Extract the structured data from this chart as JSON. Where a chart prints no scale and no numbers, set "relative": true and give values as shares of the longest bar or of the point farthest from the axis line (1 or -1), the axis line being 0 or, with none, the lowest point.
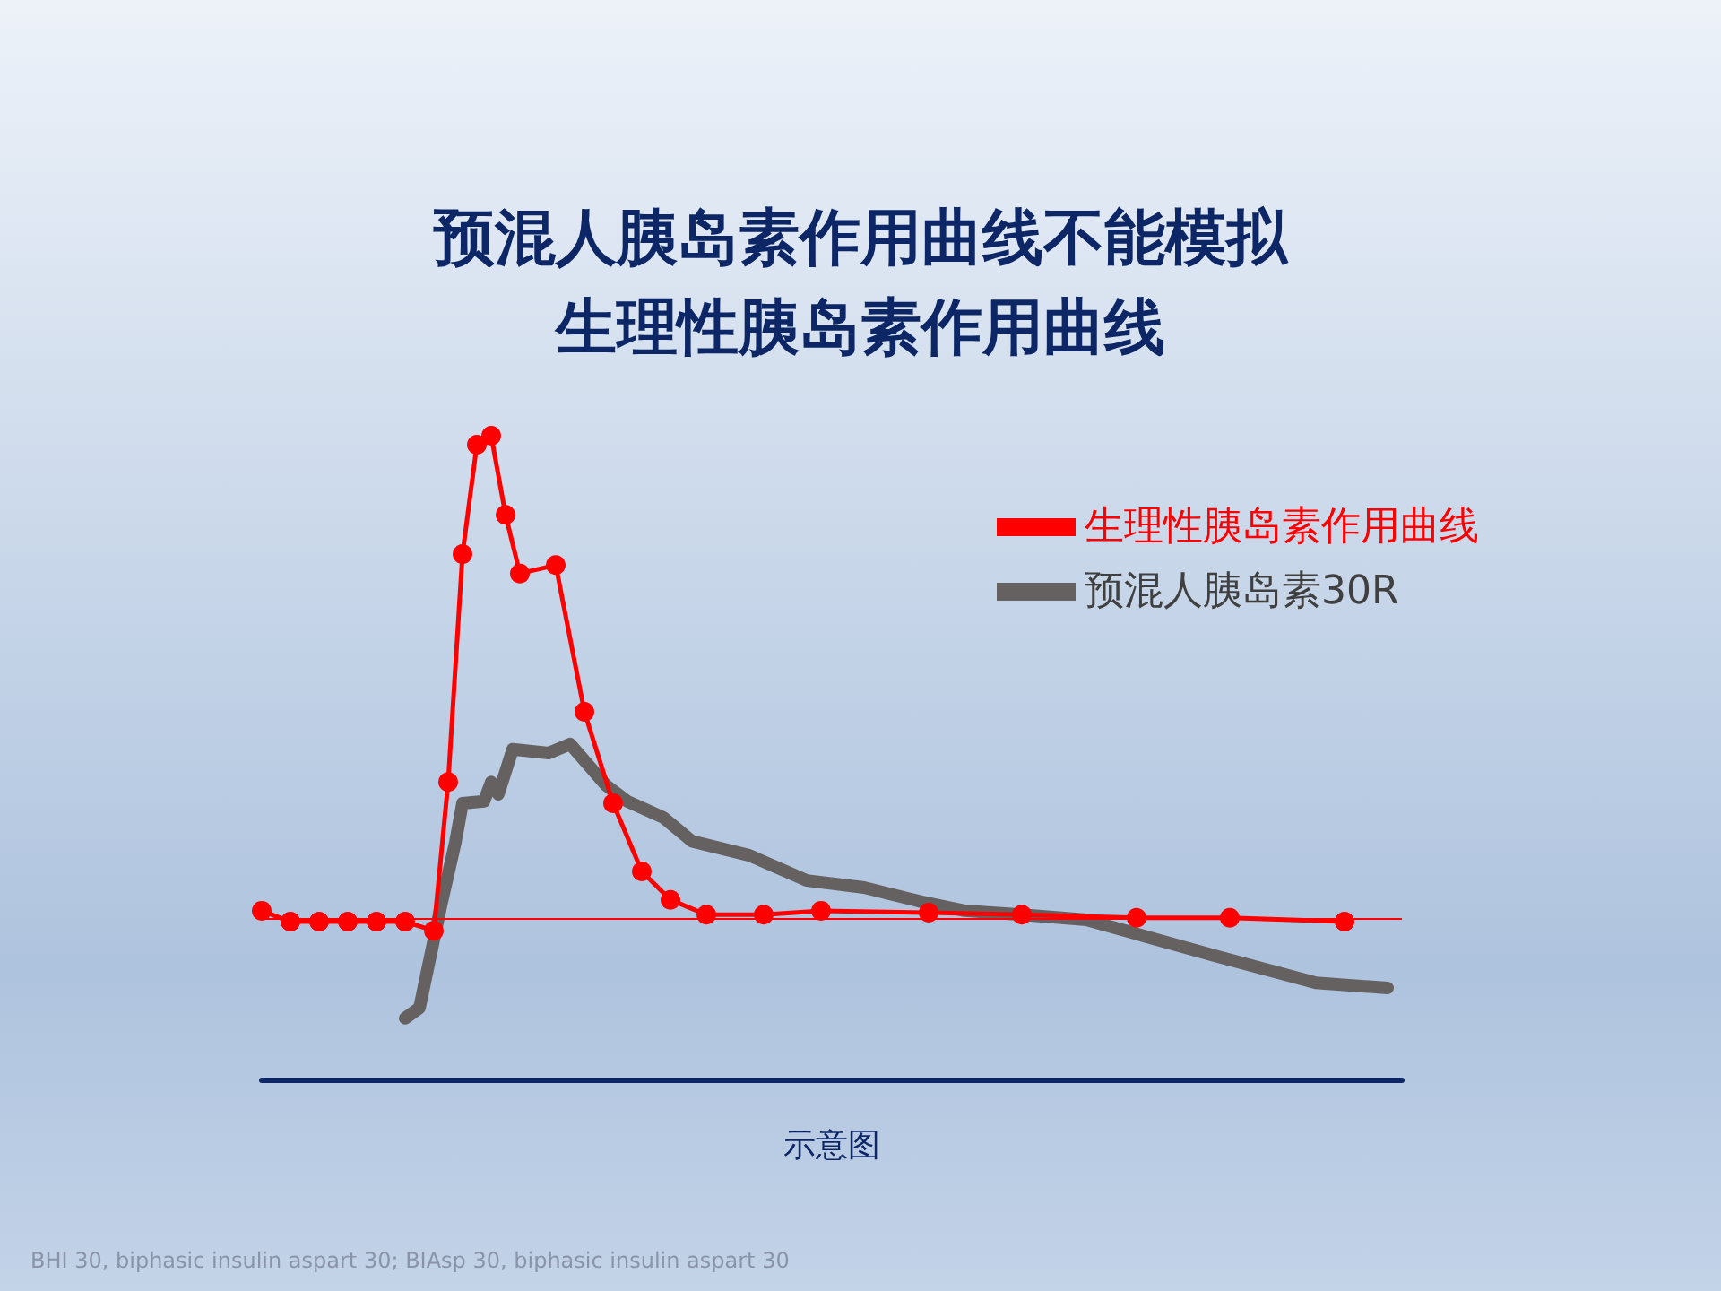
{
  "chart_data": {
    "type": "line",
    "title": "预混人胰岛素作用曲线不能模拟生理性胰岛素作用曲线",
    "xlabel": "示意图",
    "relative": true,
    "grid": false,
    "legend": "top right",
    "line_style": "solid",
    "annotations": [
      "BHI 30, biphasic insulin aspart 30; BIAsp 30, biphasic insulin aspart 30"
    ],
    "ref_lines": [
      {
        "axis": "y",
        "value": 0.248,
        "label": null,
        "color": "#ff0000"
      }
    ],
    "categories": [
      null,
      null,
      null,
      null,
      null,
      null,
      null,
      null,
      null,
      null,
      null,
      null,
      null,
      null,
      null,
      null,
      null,
      null,
      null,
      null,
      null,
      null,
      null,
      null,
      null,
      null,
      null,
      null,
      null,
      null,
      null,
      null,
      null,
      null,
      null,
      null,
      null,
      null,
      null,
      null,
      null,
      null,
      null,
      null,
      null,
      null,
      null,
      null,
      null,
      null,
      null,
      null,
      null,
      null,
      null,
      null,
      null,
      null,
      null,
      null,
      null,
      null,
      null,
      null,
      null,
      null,
      null,
      null,
      null,
      null,
      null,
      null,
      null,
      null,
      null,
      null,
      null,
      null,
      null,
      null,
      null,
      null,
      null,
      null,
      null,
      null,
      null,
      null,
      null,
      null,
      null,
      null,
      null,
      null,
      null,
      null,
      null,
      null,
      null,
      null,
      null,
      null,
      null,
      null,
      null,
      null,
      null,
      null,
      null,
      null,
      null,
      null,
      null,
      null,
      null,
      null,
      null,
      null,
      null,
      null,
      null,
      null,
      null,
      null,
      null,
      null,
      null,
      null,
      null,
      null,
      null,
      null,
      null,
      null,
      null,
      null,
      null,
      null,
      null,
      null,
      null,
      null,
      null,
      null,
      null,
      null,
      null,
      null,
      null,
      null,
      null,
      null,
      null,
      null,
      null,
      null,
      null,
      null,
      null,
      null
    ],
    "series": [
      {
        "name": "生理性胰岛素作用曲线",
        "color": "#ff0000",
        "marker": "circle",
        "values": [
          0.262,
          null,
          null,
          null,
          0.245,
          null,
          null,
          null,
          0.245,
          null,
          null,
          null,
          0.245,
          null,
          null,
          null,
          0.245,
          null,
          null,
          null,
          0.245,
          null,
          null,
          null,
          0.231,
          null,
          0.462,
          null,
          0.816,
          null,
          0.986,
          null,
          1,
          null,
          0.877,
          null,
          0.786,
          null,
          null,
          null,
          null,
          0.799,
          null,
          null,
          null,
          0.571,
          null,
          null,
          null,
          0.429,
          null,
          null,
          null,
          0.323,
          null,
          null,
          null,
          0.279,
          null,
          null,
          null,
          null,
          0.256,
          null,
          null,
          null,
          null,
          null,
          null,
          null,
          0.256,
          null,
          null,
          null,
          null,
          null,
          null,
          null,
          0.262,
          null,
          null,
          null,
          null,
          null,
          null,
          null,
          null,
          null,
          null,
          null,
          null,
          null,
          null,
          0.259,
          null,
          null,
          null,
          null,
          null,
          null,
          null,
          null,
          null,
          null,
          null,
          null,
          0.256,
          null,
          null,
          null,
          null,
          null,
          null,
          null,
          null,
          null,
          null,
          null,
          null,
          null,
          null,
          null,
          0.251,
          null,
          null,
          null,
          null,
          null,
          null,
          null,
          null,
          null,
          null,
          null,
          null,
          0.251,
          null,
          null,
          null,
          null,
          null,
          null,
          null,
          null,
          null,
          null,
          null,
          null,
          null,
          null,
          null,
          0.245,
          null,
          null,
          null,
          null,
          null,
          null,
          null,
          null
        ]
      },
      {
        "name": "预混人胰岛素30R",
        "color": "#666161",
        "marker": "none",
        "values": [
          null,
          null,
          null,
          null,
          null,
          null,
          null,
          null,
          null,
          null,
          null,
          null,
          null,
          null,
          null,
          null,
          null,
          null,
          null,
          null,
          0.095,
          null,
          0.111,
          null,
          null,
          0.27,
          null,
          0.368,
          0.429,
          null,
          null,
          0.432,
          0.462,
          0.443,
          null,
          0.513,
          null,
          null,
          null,
          null,
          0.507,
          null,
          null,
          0.521,
          null,
          null,
          null,
          null,
          0.457,
          null,
          null,
          0.432,
          null,
          null,
          null,
          null,
          0.407,
          null,
          null,
          null,
          0.37,
          null,
          null,
          null,
          null,
          null,
          null,
          null,
          0.348,
          null,
          null,
          null,
          null,
          null,
          null,
          null,
          0.309,
          null,
          null,
          null,
          null,
          null,
          null,
          null,
          0.298,
          null,
          null,
          null,
          null,
          null,
          null,
          null,
          0.276,
          null,
          null,
          null,
          null,
          null,
          0.262,
          null,
          null,
          null,
          null,
          null,
          null,
          null,
          0.256,
          null,
          null,
          null,
          null,
          null,
          null,
          null,
          null,
          0.248,
          null,
          null,
          null,
          null,
          null,
          null,
          null,
          0.223,
          null,
          null,
          null,
          null,
          null,
          null,
          null,
          null,
          null,
          0.192,
          null,
          null,
          null,
          null,
          null,
          null,
          null,
          null,
          null,
          null,
          null,
          null,
          null,
          0.15,
          null,
          null,
          null,
          null,
          null,
          null,
          null,
          null,
          null,
          0.142,
          null,
          null
        ]
      }
    ]
  }
}
